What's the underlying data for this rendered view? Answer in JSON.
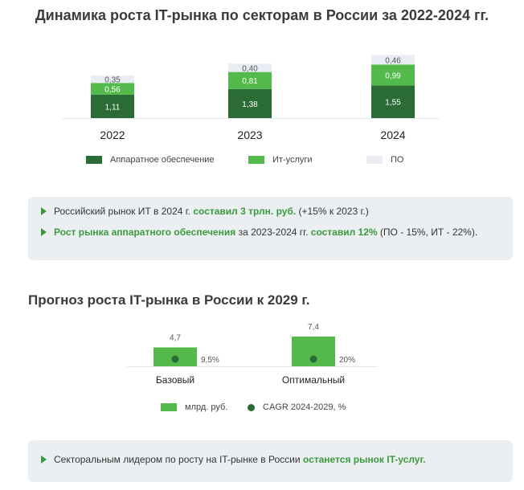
{
  "header": {
    "title": "Динамика роста IT-рынка по секторам в России за 2022-2024 гг."
  },
  "colors": {
    "hardware": "#2b6b35",
    "services": "#54b94b",
    "software": "#e9edf3",
    "cagr_dot": "#2b6b35",
    "highlight": "#3a9a3e",
    "panel": "#eceff2"
  },
  "chart_data": [
    {
      "type": "bar",
      "stacked": true,
      "title": "Динамика роста IT-рынка по секторам в России за 2022-2024 гг.",
      "categories": [
        "2022",
        "2023",
        "2024"
      ],
      "series": [
        {
          "name": "Аппаратное обеспечение",
          "values": [
            1.11,
            1.38,
            1.55
          ],
          "labels": [
            "1,11",
            "1,38",
            "1,55"
          ]
        },
        {
          "name": "Ит-услуги",
          "values": [
            0.56,
            0.81,
            0.99
          ],
          "labels": [
            "0,56",
            "0,81",
            "0,99"
          ]
        },
        {
          "name": "ПО",
          "values": [
            0.35,
            0.4,
            0.46
          ],
          "labels": [
            "0,35",
            "0,40",
            "0,46"
          ]
        }
      ],
      "legend_position": "bottom",
      "grid": false
    },
    {
      "type": "bar",
      "title": "Прогноз роста IT-рынка в России к 2029 г.",
      "categories": [
        "Базовый",
        "Оптимальный"
      ],
      "series": [
        {
          "name": "млрд. руб.",
          "values": [
            4.7,
            7.4
          ],
          "labels": [
            "4,7",
            "7,4"
          ]
        },
        {
          "name": "CAGR 2024-2029, %",
          "values": [
            9.5,
            20
          ],
          "labels": [
            "9,5%",
            "20%"
          ],
          "marker": "dot"
        }
      ],
      "legend_position": "bottom",
      "grid": false
    }
  ],
  "box1": {
    "line1_a": "Российский рынок ИТ в 2024 г. ",
    "line1_b": "составил 3 трлн. руб.",
    "line1_c": " (+15% к 2023 г.)",
    "line2_a": "Рост рынка аппаратного обеспечения",
    "line2_b": " за 2023-2024 гг. ",
    "line2_c": "составил 12%",
    "line2_d": " (ПО - 15%, ИТ - 22%)."
  },
  "forecast": {
    "title": "Прогноз роста IT-рынка в России к 2029 г."
  },
  "box2": {
    "text_a": "Секторальным лидером по росту на IT-рынке в России ",
    "text_b": "останется рынок IT-услуг."
  }
}
